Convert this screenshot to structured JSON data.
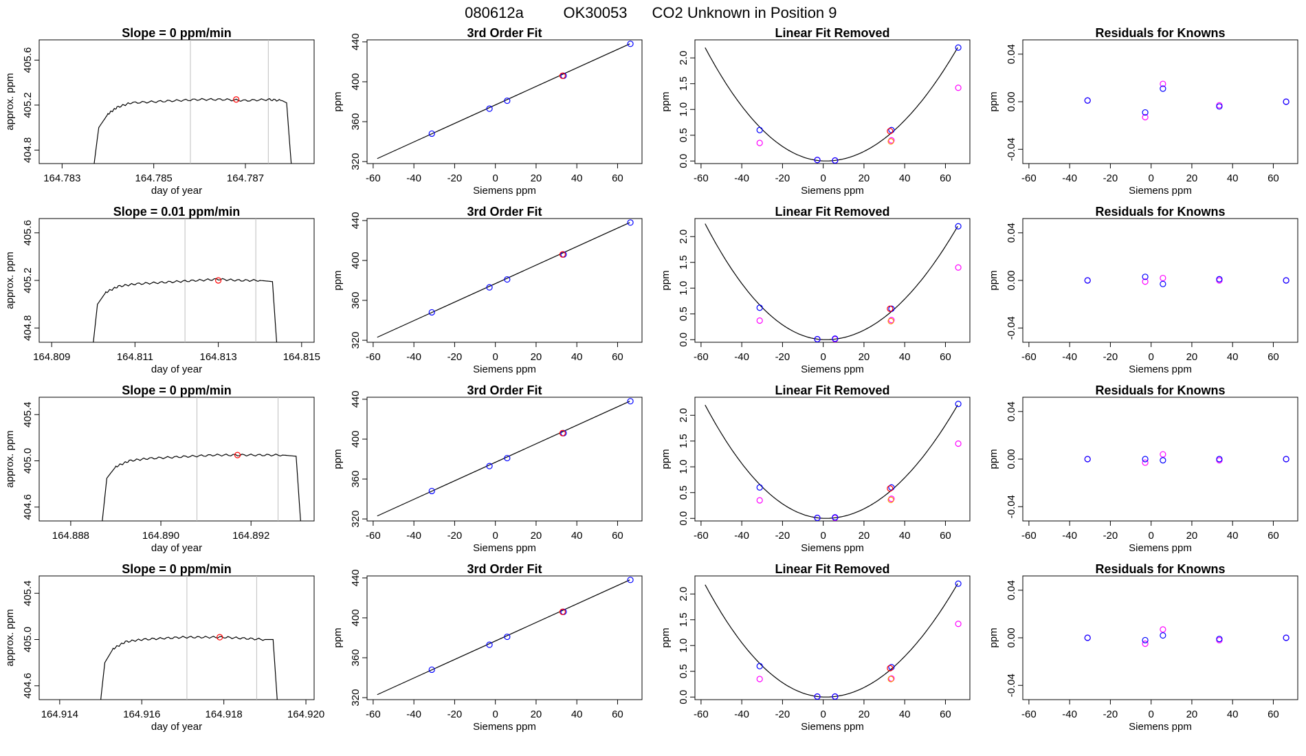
{
  "page": {
    "title_parts": [
      "080612a",
      "OK30053",
      "CO2 Unknown in Position  9"
    ]
  },
  "colors": {
    "known_blue": "#0000ff",
    "predicted_magenta": "#ff00ff",
    "unknown_red": "#ff0000",
    "unknown_orange": "#ff8c00",
    "vline_gray": "#bebebe",
    "line": "#000000"
  },
  "chart_data": [
    {
      "id": "r1-trace",
      "type": "line",
      "title": "Slope =  0  ppm/min",
      "xlabel": "day of year",
      "ylabel": "approx. ppm",
      "xlim": [
        164.7825,
        164.7885
      ],
      "ylim": [
        404.68,
        405.78
      ],
      "xticks": [
        "164.783",
        "164.785",
        "164.787"
      ],
      "yticks": [
        "404.8",
        "405.2",
        "405.6"
      ],
      "vlines": [
        164.7858,
        164.7875
      ],
      "x": [
        164.7837,
        164.7838,
        164.784,
        164.7842,
        164.7845,
        164.785,
        164.7855,
        164.786,
        164.7865,
        164.787,
        164.7875,
        164.7878,
        164.7879,
        164.788
      ],
      "y": [
        404.68,
        405.0,
        405.12,
        405.18,
        405.22,
        405.23,
        405.24,
        405.25,
        405.25,
        405.24,
        405.25,
        405.24,
        405.22,
        404.68
      ],
      "marker": {
        "x": 164.7868,
        "y": 405.25
      }
    },
    {
      "id": "r1-fit",
      "type": "scatter",
      "title": "3rd Order Fit",
      "xlabel": "Siemens ppm",
      "ylabel": "ppm",
      "xlim": [
        -63,
        72
      ],
      "ylim": [
        318,
        442
      ],
      "xticks": [
        "-60",
        "-40",
        "-20",
        "0",
        "20",
        "40",
        "60"
      ],
      "yticks": [
        "320",
        "360",
        "400",
        "440"
      ],
      "line": [
        [
          -58,
          323
        ],
        [
          66,
          438
        ]
      ],
      "known": [
        [
          -31.2,
          348
        ],
        [
          -2.9,
          373
        ],
        [
          5.8,
          381
        ],
        [
          33.5,
          406
        ],
        [
          66.3,
          438
        ]
      ],
      "unknown": [
        [
          33,
          406
        ]
      ]
    },
    {
      "id": "r1-lin",
      "type": "scatter",
      "title": "Linear Fit Removed",
      "xlabel": "Siemens ppm",
      "ylabel": "ppm",
      "xlim": [
        -63,
        72
      ],
      "ylim": [
        -0.05,
        2.35
      ],
      "xticks": [
        "-60",
        "-40",
        "-20",
        "0",
        "20",
        "40",
        "60"
      ],
      "yticks": [
        "0.0",
        "0.5",
        "1.0",
        "1.5",
        "2.0"
      ],
      "curve_min": [
        1.2,
        0.0
      ],
      "curve_ends": [
        [
          -58,
          2.2
        ],
        [
          66,
          2.2
        ]
      ],
      "known": [
        [
          -31.2,
          0.6
        ],
        [
          -2.9,
          0.02
        ],
        [
          5.8,
          0.01
        ],
        [
          33.5,
          0.6
        ],
        [
          66.3,
          2.2
        ]
      ],
      "predicted": [
        [
          -31.2,
          0.35
        ],
        [
          -2.9,
          0.02
        ],
        [
          5.8,
          0.01
        ],
        [
          33.5,
          0.4
        ],
        [
          66.3,
          1.42
        ]
      ],
      "unknown": [
        [
          32.8,
          0.58
        ],
        [
          33.2,
          0.38
        ]
      ]
    },
    {
      "id": "r1-res",
      "type": "scatter",
      "title": "Residuals for Knowns",
      "xlabel": "Siemens ppm",
      "ylabel": "ppm",
      "xlim": [
        -63,
        72
      ],
      "ylim": [
        -0.052,
        0.052
      ],
      "xticks": [
        "-60",
        "-40",
        "-20",
        "0",
        "20",
        "40",
        "60"
      ],
      "yticks": [
        "-0.04",
        "0.00",
        "0.04"
      ],
      "known": [
        [
          -31.2,
          0.001
        ],
        [
          -2.9,
          -0.009
        ],
        [
          5.8,
          0.011
        ],
        [
          33.5,
          -0.004
        ],
        [
          66.3,
          0.0
        ]
      ],
      "predicted": [
        [
          -31.2,
          0.001
        ],
        [
          -2.9,
          -0.013
        ],
        [
          5.8,
          0.015
        ],
        [
          33.5,
          -0.003
        ],
        [
          66.3,
          0.0
        ]
      ]
    },
    {
      "id": "r2-trace",
      "type": "line",
      "title": "Slope =  0.01  ppm/min",
      "xlabel": "day of year",
      "ylabel": "approx. ppm",
      "xlim": [
        164.8087,
        164.8153
      ],
      "ylim": [
        404.68,
        405.72
      ],
      "xticks": [
        "164.809",
        "164.811",
        "164.813",
        "164.815"
      ],
      "yticks": [
        "404.8",
        "405.2",
        "405.6"
      ],
      "vlines": [
        164.8122,
        164.8139
      ],
      "x": [
        164.81,
        164.8101,
        164.8103,
        164.8106,
        164.811,
        164.8115,
        164.812,
        164.8125,
        164.813,
        164.8135,
        164.814,
        164.8143,
        164.8144
      ],
      "y": [
        404.68,
        405.0,
        405.1,
        405.15,
        405.17,
        405.18,
        405.19,
        405.2,
        405.21,
        405.2,
        405.2,
        405.19,
        404.68
      ],
      "marker": {
        "x": 164.813,
        "y": 405.2
      }
    },
    {
      "id": "r2-fit",
      "type": "scatter",
      "title": "3rd Order Fit",
      "xlabel": "Siemens ppm",
      "ylabel": "ppm",
      "xlim": [
        -63,
        72
      ],
      "ylim": [
        318,
        442
      ],
      "xticks": [
        "-60",
        "-40",
        "-20",
        "0",
        "20",
        "40",
        "60"
      ],
      "yticks": [
        "320",
        "360",
        "400",
        "440"
      ],
      "line": [
        [
          -58,
          323
        ],
        [
          66,
          438
        ]
      ],
      "known": [
        [
          -31.2,
          348
        ],
        [
          -2.9,
          373
        ],
        [
          5.8,
          381
        ],
        [
          33.5,
          406
        ],
        [
          66.3,
          438
        ]
      ],
      "unknown": [
        [
          33,
          406
        ]
      ]
    },
    {
      "id": "r2-lin",
      "type": "scatter",
      "title": "Linear Fit Removed",
      "xlabel": "Siemens ppm",
      "ylabel": "ppm",
      "xlim": [
        -63,
        72
      ],
      "ylim": [
        -0.05,
        2.35
      ],
      "xticks": [
        "-60",
        "-40",
        "-20",
        "0",
        "20",
        "40",
        "60"
      ],
      "yticks": [
        "0.0",
        "0.5",
        "1.0",
        "1.5",
        "2.0"
      ],
      "curve_min": [
        1.2,
        0.0
      ],
      "curve_ends": [
        [
          -58,
          2.25
        ],
        [
          66,
          2.2
        ]
      ],
      "known": [
        [
          -31.2,
          0.62
        ],
        [
          -2.9,
          0.01
        ],
        [
          5.8,
          0.02
        ],
        [
          33.5,
          0.6
        ],
        [
          66.3,
          2.2
        ]
      ],
      "predicted": [
        [
          -31.2,
          0.37
        ],
        [
          -2.9,
          0.01
        ],
        [
          5.8,
          0.01
        ],
        [
          33.5,
          0.38
        ],
        [
          66.3,
          1.4
        ]
      ],
      "unknown": [
        [
          32.8,
          0.6
        ],
        [
          33.2,
          0.36
        ]
      ]
    },
    {
      "id": "r2-res",
      "type": "scatter",
      "title": "Residuals for Knowns",
      "xlabel": "Siemens ppm",
      "ylabel": "ppm",
      "xlim": [
        -63,
        72
      ],
      "ylim": [
        -0.052,
        0.052
      ],
      "xticks": [
        "-60",
        "-40",
        "-20",
        "0",
        "20",
        "40",
        "60"
      ],
      "yticks": [
        "-0.04",
        "0.00",
        "0.04"
      ],
      "known": [
        [
          -31.2,
          0.0
        ],
        [
          -2.9,
          0.003
        ],
        [
          5.8,
          -0.003
        ],
        [
          33.5,
          0.001
        ],
        [
          66.3,
          0.0
        ]
      ],
      "predicted": [
        [
          -31.2,
          0.0
        ],
        [
          -2.9,
          -0.001
        ],
        [
          5.8,
          0.002
        ],
        [
          33.5,
          0.0
        ],
        [
          66.3,
          0.0
        ]
      ]
    },
    {
      "id": "r3-trace",
      "type": "line",
      "title": "Slope =  0  ppm/min",
      "xlabel": "day of year",
      "ylabel": "approx. ppm",
      "xlim": [
        164.8873,
        164.8934
      ],
      "ylim": [
        404.48,
        405.55
      ],
      "xticks": [
        "164.888",
        "164.890",
        "164.892"
      ],
      "yticks": [
        "404.6",
        "405.0",
        "405.4"
      ],
      "vlines": [
        164.8908,
        164.8926
      ],
      "x": [
        164.8887,
        164.8888,
        164.889,
        164.8893,
        164.8897,
        164.8902,
        164.8907,
        164.8912,
        164.8917,
        164.8922,
        164.8927,
        164.893,
        164.8931
      ],
      "y": [
        404.48,
        404.85,
        404.95,
        405.0,
        405.02,
        405.03,
        405.04,
        405.05,
        405.05,
        405.05,
        405.05,
        405.04,
        404.48
      ],
      "marker": {
        "x": 164.8917,
        "y": 405.05
      }
    },
    {
      "id": "r3-fit",
      "type": "scatter",
      "title": "3rd Order Fit",
      "xlabel": "Siemens ppm",
      "ylabel": "ppm",
      "xlim": [
        -63,
        72
      ],
      "ylim": [
        318,
        442
      ],
      "xticks": [
        "-60",
        "-40",
        "-20",
        "0",
        "20",
        "40",
        "60"
      ],
      "yticks": [
        "320",
        "360",
        "400",
        "440"
      ],
      "line": [
        [
          -58,
          323
        ],
        [
          66,
          438
        ]
      ],
      "known": [
        [
          -31.2,
          348
        ],
        [
          -2.9,
          373
        ],
        [
          5.8,
          381
        ],
        [
          33.5,
          406
        ],
        [
          66.3,
          438
        ]
      ],
      "unknown": [
        [
          33,
          406
        ]
      ]
    },
    {
      "id": "r3-lin",
      "type": "scatter",
      "title": "Linear Fit Removed",
      "xlabel": "Siemens ppm",
      "ylabel": "ppm",
      "xlim": [
        -63,
        72
      ],
      "ylim": [
        -0.05,
        2.35
      ],
      "xticks": [
        "-60",
        "-40",
        "-20",
        "0",
        "20",
        "40",
        "60"
      ],
      "yticks": [
        "0.0",
        "0.5",
        "1.0",
        "1.5",
        "2.0"
      ],
      "curve_min": [
        1.2,
        0.0
      ],
      "curve_ends": [
        [
          -58,
          2.2
        ],
        [
          66,
          2.2
        ]
      ],
      "known": [
        [
          -31.2,
          0.6
        ],
        [
          -2.9,
          0.01
        ],
        [
          5.8,
          0.02
        ],
        [
          33.5,
          0.6
        ],
        [
          66.3,
          2.22
        ]
      ],
      "predicted": [
        [
          -31.2,
          0.35
        ],
        [
          -2.9,
          0.01
        ],
        [
          5.8,
          0.01
        ],
        [
          33.5,
          0.38
        ],
        [
          66.3,
          1.45
        ]
      ],
      "unknown": [
        [
          32.8,
          0.58
        ],
        [
          33.2,
          0.36
        ]
      ]
    },
    {
      "id": "r3-res",
      "type": "scatter",
      "title": "Residuals for Knowns",
      "xlabel": "Siemens ppm",
      "ylabel": "ppm",
      "xlim": [
        -63,
        72
      ],
      "ylim": [
        -0.052,
        0.052
      ],
      "xticks": [
        "-60",
        "-40",
        "-20",
        "0",
        "20",
        "40",
        "60"
      ],
      "yticks": [
        "-0.04",
        "0.00",
        "0.04"
      ],
      "known": [
        [
          -31.2,
          0.0
        ],
        [
          -2.9,
          0.0
        ],
        [
          5.8,
          -0.001
        ],
        [
          33.5,
          0.0
        ],
        [
          66.3,
          0.0
        ]
      ],
      "predicted": [
        [
          -31.2,
          0.0
        ],
        [
          -2.9,
          -0.003
        ],
        [
          5.8,
          0.004
        ],
        [
          33.5,
          -0.001
        ],
        [
          66.3,
          0.0
        ]
      ]
    },
    {
      "id": "r4-trace",
      "type": "line",
      "title": "Slope =  0  ppm/min",
      "xlabel": "day of year",
      "ylabel": "approx. ppm",
      "xlim": [
        164.9135,
        164.9202
      ],
      "ylim": [
        404.48,
        405.55
      ],
      "xticks": [
        "164.914",
        "164.916",
        "164.918",
        "164.920"
      ],
      "yticks": [
        "404.6",
        "405.0",
        "405.4"
      ],
      "vlines": [
        164.9171,
        164.9188
      ],
      "x": [
        164.915,
        164.9151,
        164.9153,
        164.9156,
        164.916,
        164.9165,
        164.917,
        164.9175,
        164.918,
        164.9185,
        164.919,
        164.9192,
        164.9193
      ],
      "y": [
        404.48,
        404.8,
        404.92,
        404.98,
        405.0,
        405.01,
        405.02,
        405.02,
        405.02,
        405.01,
        405.0,
        405.0,
        404.48
      ],
      "marker": {
        "x": 164.9179,
        "y": 405.02
      }
    },
    {
      "id": "r4-fit",
      "type": "scatter",
      "title": "3rd Order Fit",
      "xlabel": "Siemens ppm",
      "ylabel": "ppm",
      "xlim": [
        -63,
        72
      ],
      "ylim": [
        318,
        442
      ],
      "xticks": [
        "-60",
        "-40",
        "-20",
        "0",
        "20",
        "40",
        "60"
      ],
      "yticks": [
        "320",
        "360",
        "400",
        "440"
      ],
      "line": [
        [
          -58,
          323
        ],
        [
          66,
          438
        ]
      ],
      "known": [
        [
          -31.2,
          348
        ],
        [
          -2.9,
          373
        ],
        [
          5.8,
          381
        ],
        [
          33.5,
          406
        ],
        [
          66.3,
          438
        ]
      ],
      "unknown": [
        [
          33,
          406
        ]
      ]
    },
    {
      "id": "r4-lin",
      "type": "scatter",
      "title": "Linear Fit Removed",
      "xlabel": "Siemens ppm",
      "ylabel": "ppm",
      "xlim": [
        -63,
        72
      ],
      "ylim": [
        -0.05,
        2.35
      ],
      "xticks": [
        "-60",
        "-40",
        "-20",
        "0",
        "20",
        "40",
        "60"
      ],
      "yticks": [
        "0.0",
        "0.5",
        "1.0",
        "1.5",
        "2.0"
      ],
      "curve_min": [
        1.2,
        0.0
      ],
      "curve_ends": [
        [
          -58,
          2.18
        ],
        [
          66,
          2.2
        ]
      ],
      "known": [
        [
          -31.2,
          0.6
        ],
        [
          -2.9,
          0.01
        ],
        [
          5.8,
          0.01
        ],
        [
          33.5,
          0.58
        ],
        [
          66.3,
          2.2
        ]
      ],
      "predicted": [
        [
          -31.2,
          0.35
        ],
        [
          -2.9,
          0.01
        ],
        [
          5.8,
          0.01
        ],
        [
          33.5,
          0.36
        ],
        [
          66.3,
          1.42
        ]
      ],
      "unknown": [
        [
          32.8,
          0.56
        ],
        [
          33.2,
          0.35
        ]
      ]
    },
    {
      "id": "r4-res",
      "type": "scatter",
      "title": "Residuals for Knowns",
      "xlabel": "Siemens ppm",
      "ylabel": "ppm",
      "xlim": [
        -63,
        72
      ],
      "ylim": [
        -0.052,
        0.052
      ],
      "xticks": [
        "-60",
        "-40",
        "-20",
        "0",
        "20",
        "40",
        "60"
      ],
      "yticks": [
        "-0.04",
        "0.00",
        "0.04"
      ],
      "known": [
        [
          -31.2,
          0.0
        ],
        [
          -2.9,
          -0.002
        ],
        [
          5.8,
          0.002
        ],
        [
          33.5,
          -0.001
        ],
        [
          66.3,
          0.0
        ]
      ],
      "predicted": [
        [
          -31.2,
          0.0
        ],
        [
          -2.9,
          -0.005
        ],
        [
          5.8,
          0.007
        ],
        [
          33.5,
          -0.002
        ],
        [
          66.3,
          0.0
        ]
      ]
    }
  ]
}
